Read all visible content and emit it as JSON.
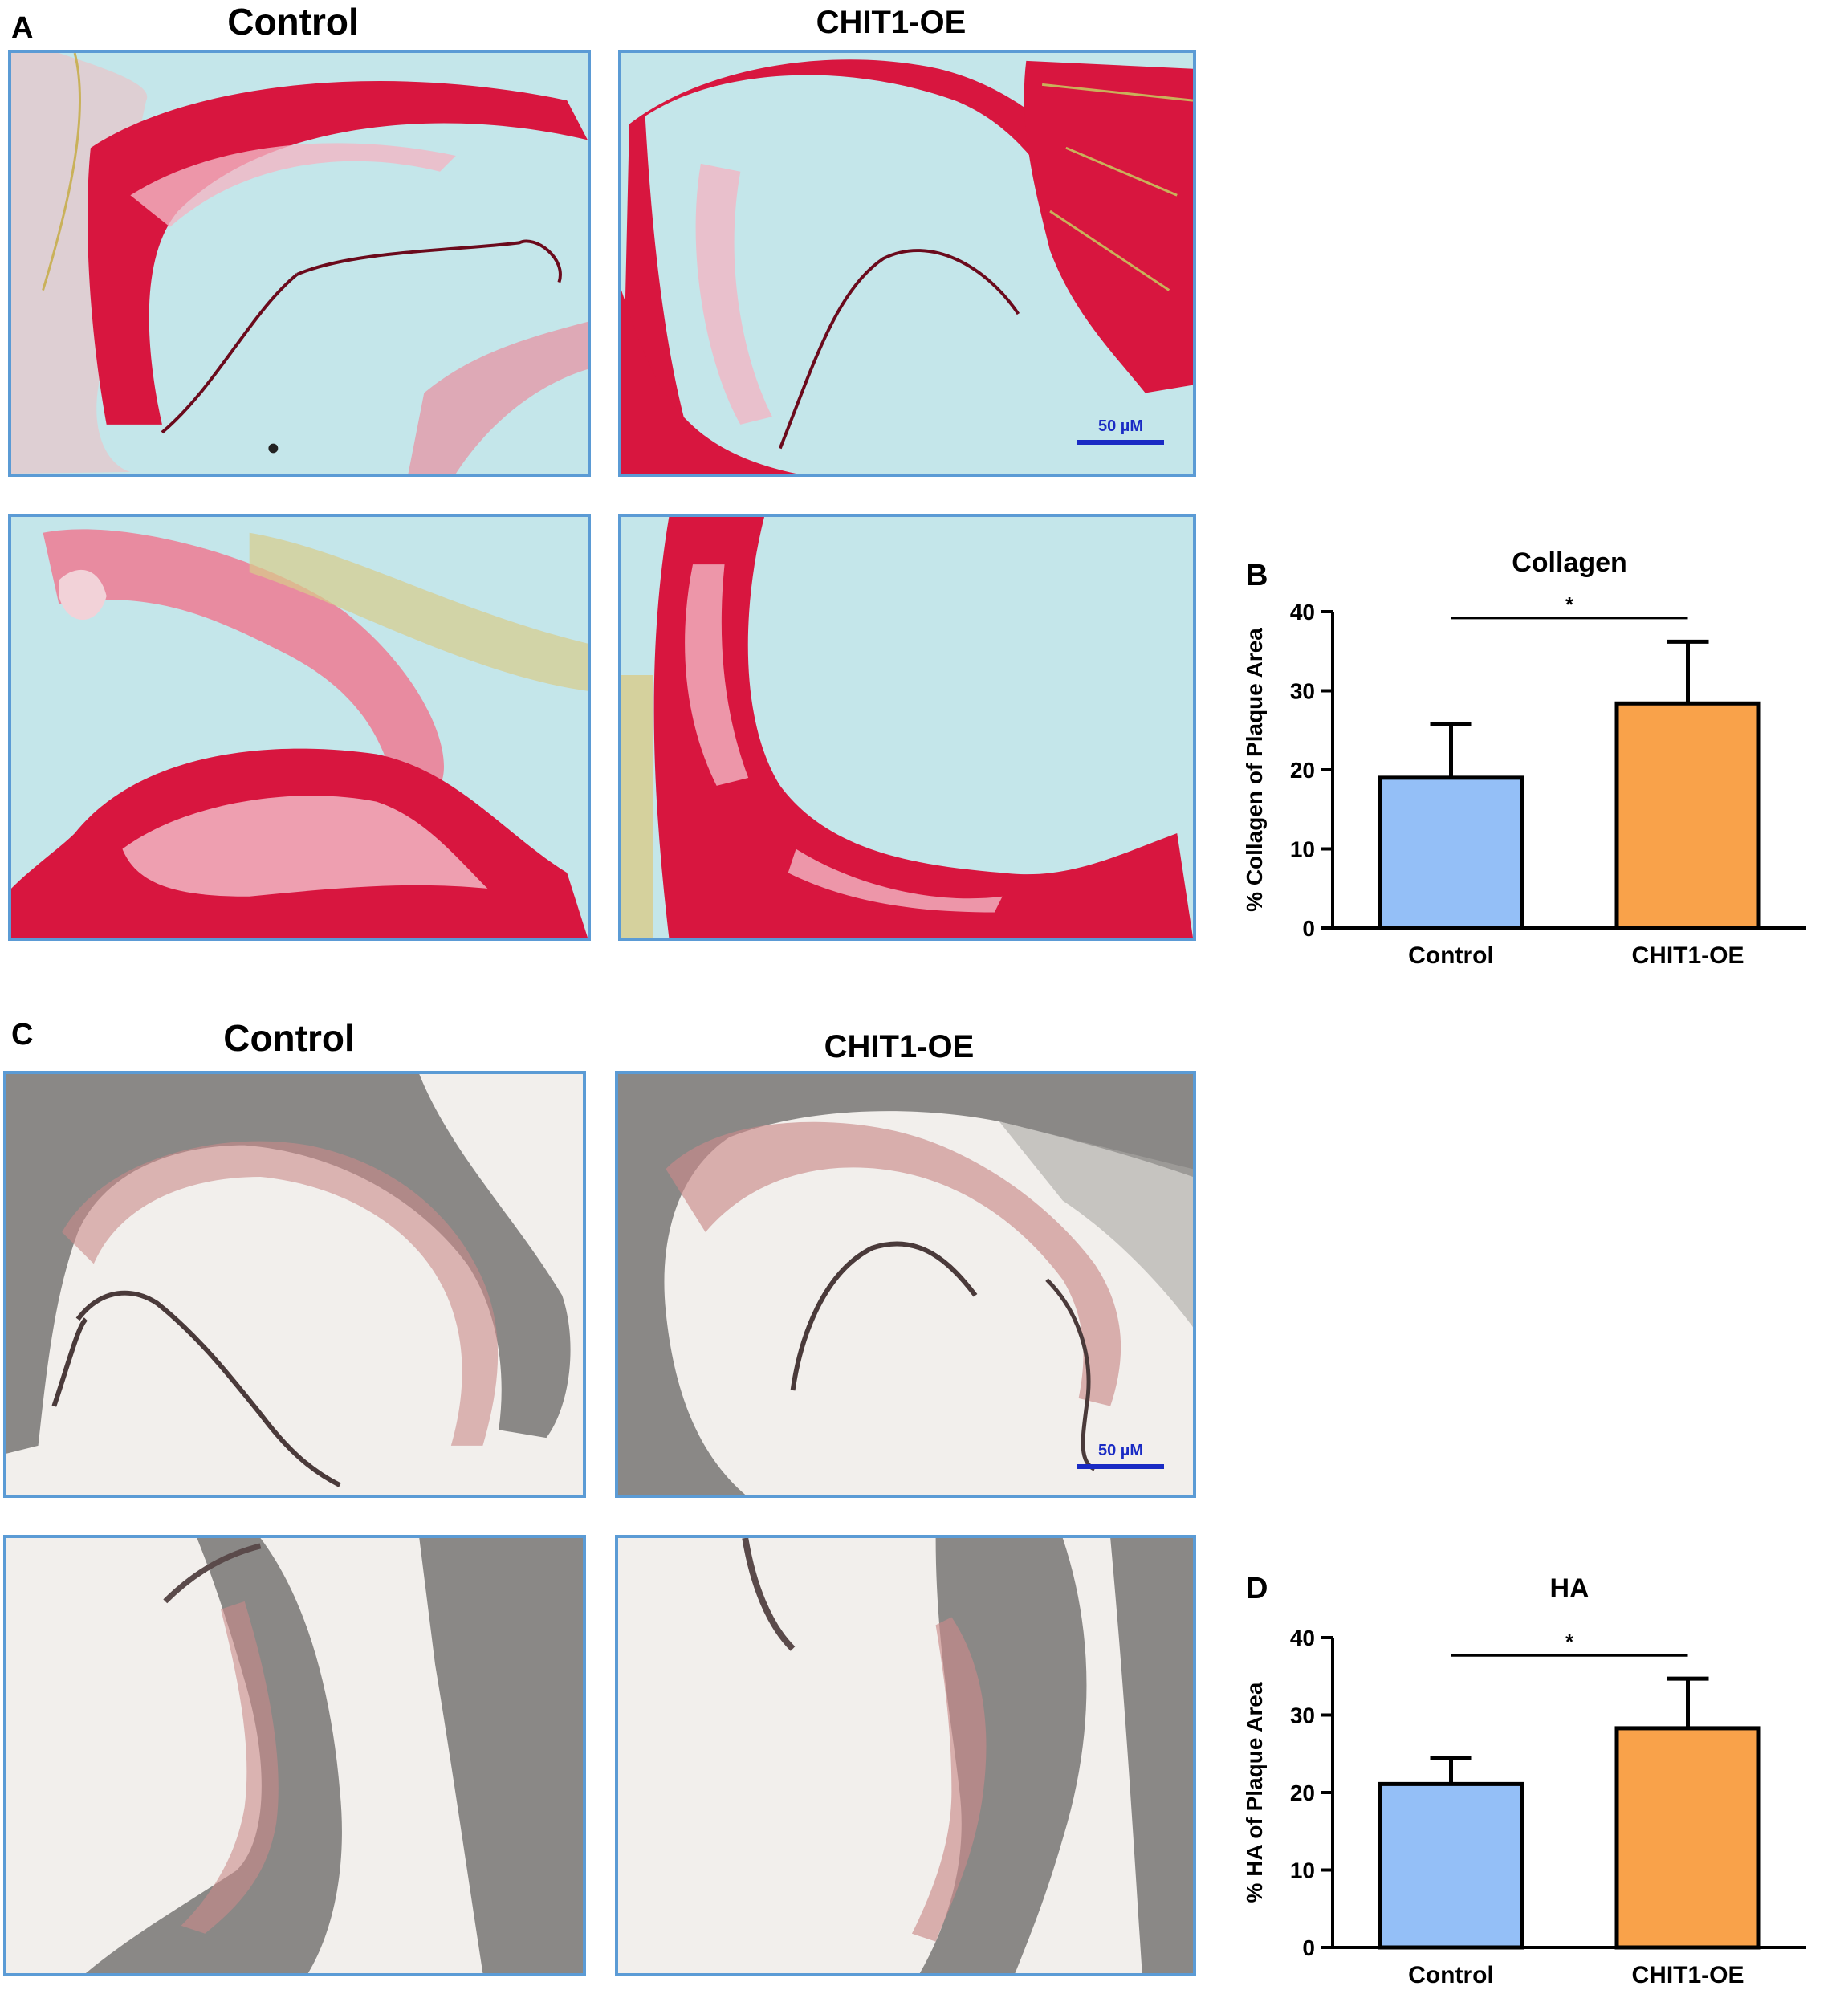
{
  "panels": {
    "a": {
      "letter": "A",
      "control_label": "Control",
      "oe_label": "CHIT1-OE",
      "scale_label": "50 µM"
    },
    "b": {
      "letter": "B"
    },
    "c": {
      "letter": "C",
      "control_label": "Control",
      "oe_label": "CHIT1-OE",
      "scale_label": "50 µM"
    },
    "d": {
      "letter": "D"
    }
  },
  "colors": {
    "control_bar": "#94bff7",
    "oe_bar": "#f9a24a",
    "frame": "#5b9bd5",
    "scalebar": "#1a2bc4",
    "picrosirius_bg": "#c4e6ea",
    "picrosirius_stain": "#d8163f",
    "ha_bg": "#f2efec",
    "ha_tissue": "#7c7a78",
    "ha_stain": "#c98a8a"
  },
  "chart_data": [
    {
      "type": "bar",
      "title": "Collagen",
      "ylabel": "% Collagen of Plaque Area",
      "categories": [
        "Control",
        "CHIT1-OE"
      ],
      "values": [
        19,
        28.4
      ],
      "error_upper": [
        25.8,
        36.2
      ],
      "ylim": [
        0,
        40
      ],
      "yticks": [
        0,
        10,
        20,
        30,
        40
      ],
      "significance": {
        "between": [
          0,
          1
        ],
        "label": "*"
      },
      "grid": false
    },
    {
      "type": "bar",
      "title": "HA",
      "ylabel": "% HA of Plaque Area",
      "categories": [
        "Control",
        "CHIT1-OE"
      ],
      "values": [
        21.1,
        28.3
      ],
      "error_upper": [
        24.4,
        34.7
      ],
      "ylim": [
        0,
        40
      ],
      "yticks": [
        0,
        10,
        20,
        30,
        40
      ],
      "significance": {
        "between": [
          0,
          1
        ],
        "label": "*"
      },
      "grid": false
    }
  ]
}
